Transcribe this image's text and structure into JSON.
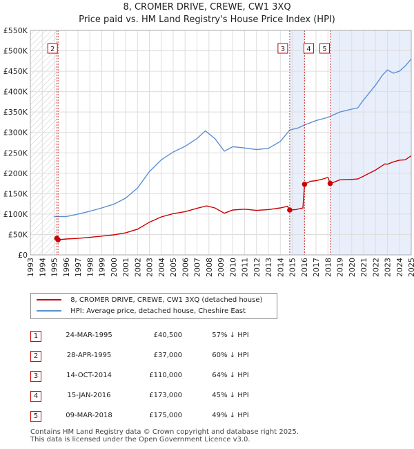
{
  "chart_data": {
    "type": "line",
    "title": "8, CROMER DRIVE, CREWE, CW1 3XQ",
    "subtitle": "Price paid vs. HM Land Registry's House Price Index (HPI)",
    "xlabel": "",
    "ylabel": "",
    "xlim": [
      1993,
      2025
    ],
    "ylim": [
      0,
      550000
    ],
    "yticks": [
      {
        "value": 0,
        "label": "£0"
      },
      {
        "value": 50000,
        "label": "£50K"
      },
      {
        "value": 100000,
        "label": "£100K"
      },
      {
        "value": 150000,
        "label": "£150K"
      },
      {
        "value": 200000,
        "label": "£200K"
      },
      {
        "value": 250000,
        "label": "£250K"
      },
      {
        "value": 300000,
        "label": "£300K"
      },
      {
        "value": 350000,
        "label": "£350K"
      },
      {
        "value": 400000,
        "label": "£400K"
      },
      {
        "value": 450000,
        "label": "£450K"
      },
      {
        "value": 500000,
        "label": "£500K"
      },
      {
        "value": 550000,
        "label": "£550K"
      }
    ],
    "xticks": [
      "1993",
      "1994",
      "1995",
      "1996",
      "1997",
      "1998",
      "1999",
      "2000",
      "2001",
      "2002",
      "2003",
      "2004",
      "2005",
      "2006",
      "2007",
      "2008",
      "2009",
      "2010",
      "2011",
      "2012",
      "2013",
      "2014",
      "2015",
      "2016",
      "2017",
      "2018",
      "2019",
      "2020",
      "2021",
      "2022",
      "2023",
      "2024",
      "2025"
    ],
    "grid": true,
    "hatched_before": 1995.2,
    "shaded_ranges": [
      [
        2014.79,
        2016.04
      ],
      [
        2018.19,
        2025
      ]
    ],
    "series": [
      {
        "name": "8, CROMER DRIVE, CREWE, CW1 3XQ (detached house)",
        "color": "#cc0000",
        "points": [
          [
            1995.23,
            40500
          ],
          [
            1995.33,
            37000
          ],
          [
            1996,
            39000
          ],
          [
            1997,
            40500
          ],
          [
            1998,
            43000
          ],
          [
            1999,
            46000
          ],
          [
            2000,
            49000
          ],
          [
            2001,
            54000
          ],
          [
            2002,
            63000
          ],
          [
            2003,
            80000
          ],
          [
            2004,
            93000
          ],
          [
            2005,
            101000
          ],
          [
            2006,
            106000
          ],
          [
            2007,
            114000
          ],
          [
            2007.8,
            120000
          ],
          [
            2008.5,
            115000
          ],
          [
            2009.3,
            102000
          ],
          [
            2010,
            110000
          ],
          [
            2011,
            112000
          ],
          [
            2012,
            109000
          ],
          [
            2013,
            111000
          ],
          [
            2014,
            115000
          ],
          [
            2014.6,
            119000
          ],
          [
            2014.79,
            110000
          ],
          [
            2015.3,
            111000
          ],
          [
            2015.9,
            115000
          ],
          [
            2016.04,
            173000
          ],
          [
            2016.5,
            180000
          ],
          [
            2017,
            182000
          ],
          [
            2017.6,
            186000
          ],
          [
            2018.0,
            190000
          ],
          [
            2018.19,
            175000
          ],
          [
            2018.5,
            178000
          ],
          [
            2019,
            184000
          ],
          [
            2020,
            185000
          ],
          [
            2020.5,
            186000
          ],
          [
            2021,
            193000
          ],
          [
            2022,
            208000
          ],
          [
            2022.8,
            223000
          ],
          [
            2023,
            222000
          ],
          [
            2023.5,
            228000
          ],
          [
            2024,
            232000
          ],
          [
            2024.5,
            233000
          ],
          [
            2025,
            243000
          ]
        ]
      },
      {
        "name": "HPI: Average price, detached house, Cheshire East",
        "color": "#5b8fd0",
        "points": [
          [
            1995,
            94000
          ],
          [
            1996,
            94000
          ],
          [
            1997,
            100000
          ],
          [
            1998,
            107000
          ],
          [
            1999,
            115000
          ],
          [
            2000,
            124000
          ],
          [
            2001,
            139000
          ],
          [
            2002,
            164000
          ],
          [
            2003,
            204000
          ],
          [
            2004,
            233000
          ],
          [
            2005,
            252000
          ],
          [
            2006,
            266000
          ],
          [
            2007,
            285000
          ],
          [
            2007.7,
            304000
          ],
          [
            2008.5,
            285000
          ],
          [
            2009.3,
            254000
          ],
          [
            2010,
            265000
          ],
          [
            2011,
            262000
          ],
          [
            2012,
            258000
          ],
          [
            2013,
            261000
          ],
          [
            2014,
            278000
          ],
          [
            2014.79,
            306000
          ],
          [
            2015.5,
            311000
          ],
          [
            2016,
            318000
          ],
          [
            2017,
            329000
          ],
          [
            2018,
            337000
          ],
          [
            2019,
            350000
          ],
          [
            2020,
            357000
          ],
          [
            2020.5,
            360000
          ],
          [
            2021,
            380000
          ],
          [
            2022,
            416000
          ],
          [
            2022.6,
            441000
          ],
          [
            2023,
            453000
          ],
          [
            2023.5,
            445000
          ],
          [
            2024,
            450000
          ],
          [
            2024.5,
            463000
          ],
          [
            2025,
            480000
          ]
        ]
      }
    ],
    "markers": [
      {
        "label": "1",
        "x": 1995.23,
        "y": 40500
      },
      {
        "label": "2",
        "x": 1995.33,
        "y": 37000
      },
      {
        "label": "3",
        "x": 2014.79,
        "y": 110000
      },
      {
        "label": "4",
        "x": 2016.04,
        "y": 173000
      },
      {
        "label": "5",
        "x": 2018.19,
        "y": 175000
      }
    ],
    "marker_boxes": [
      "2",
      "3",
      "4",
      "5"
    ]
  },
  "legend": {
    "items": [
      {
        "label": "8, CROMER DRIVE, CREWE, CW1 3XQ (detached house)",
        "color": "#cc0000"
      },
      {
        "label": "HPI: Average price, detached house, Cheshire East",
        "color": "#5b8fd0"
      }
    ]
  },
  "transactions": [
    {
      "num": "1",
      "date": "24-MAR-1995",
      "price": "£40,500",
      "hpi": "57% ↓ HPI"
    },
    {
      "num": "2",
      "date": "28-APR-1995",
      "price": "£37,000",
      "hpi": "60% ↓ HPI"
    },
    {
      "num": "3",
      "date": "14-OCT-2014",
      "price": "£110,000",
      "hpi": "64% ↓ HPI"
    },
    {
      "num": "4",
      "date": "15-JAN-2016",
      "price": "£173,000",
      "hpi": "45% ↓ HPI"
    },
    {
      "num": "5",
      "date": "09-MAR-2018",
      "price": "£175,000",
      "hpi": "49% ↓ HPI"
    }
  ],
  "footer": {
    "line1": "Contains HM Land Registry data © Crown copyright and database right 2025.",
    "line2": "This data is licensed under the Open Government Licence v3.0."
  }
}
